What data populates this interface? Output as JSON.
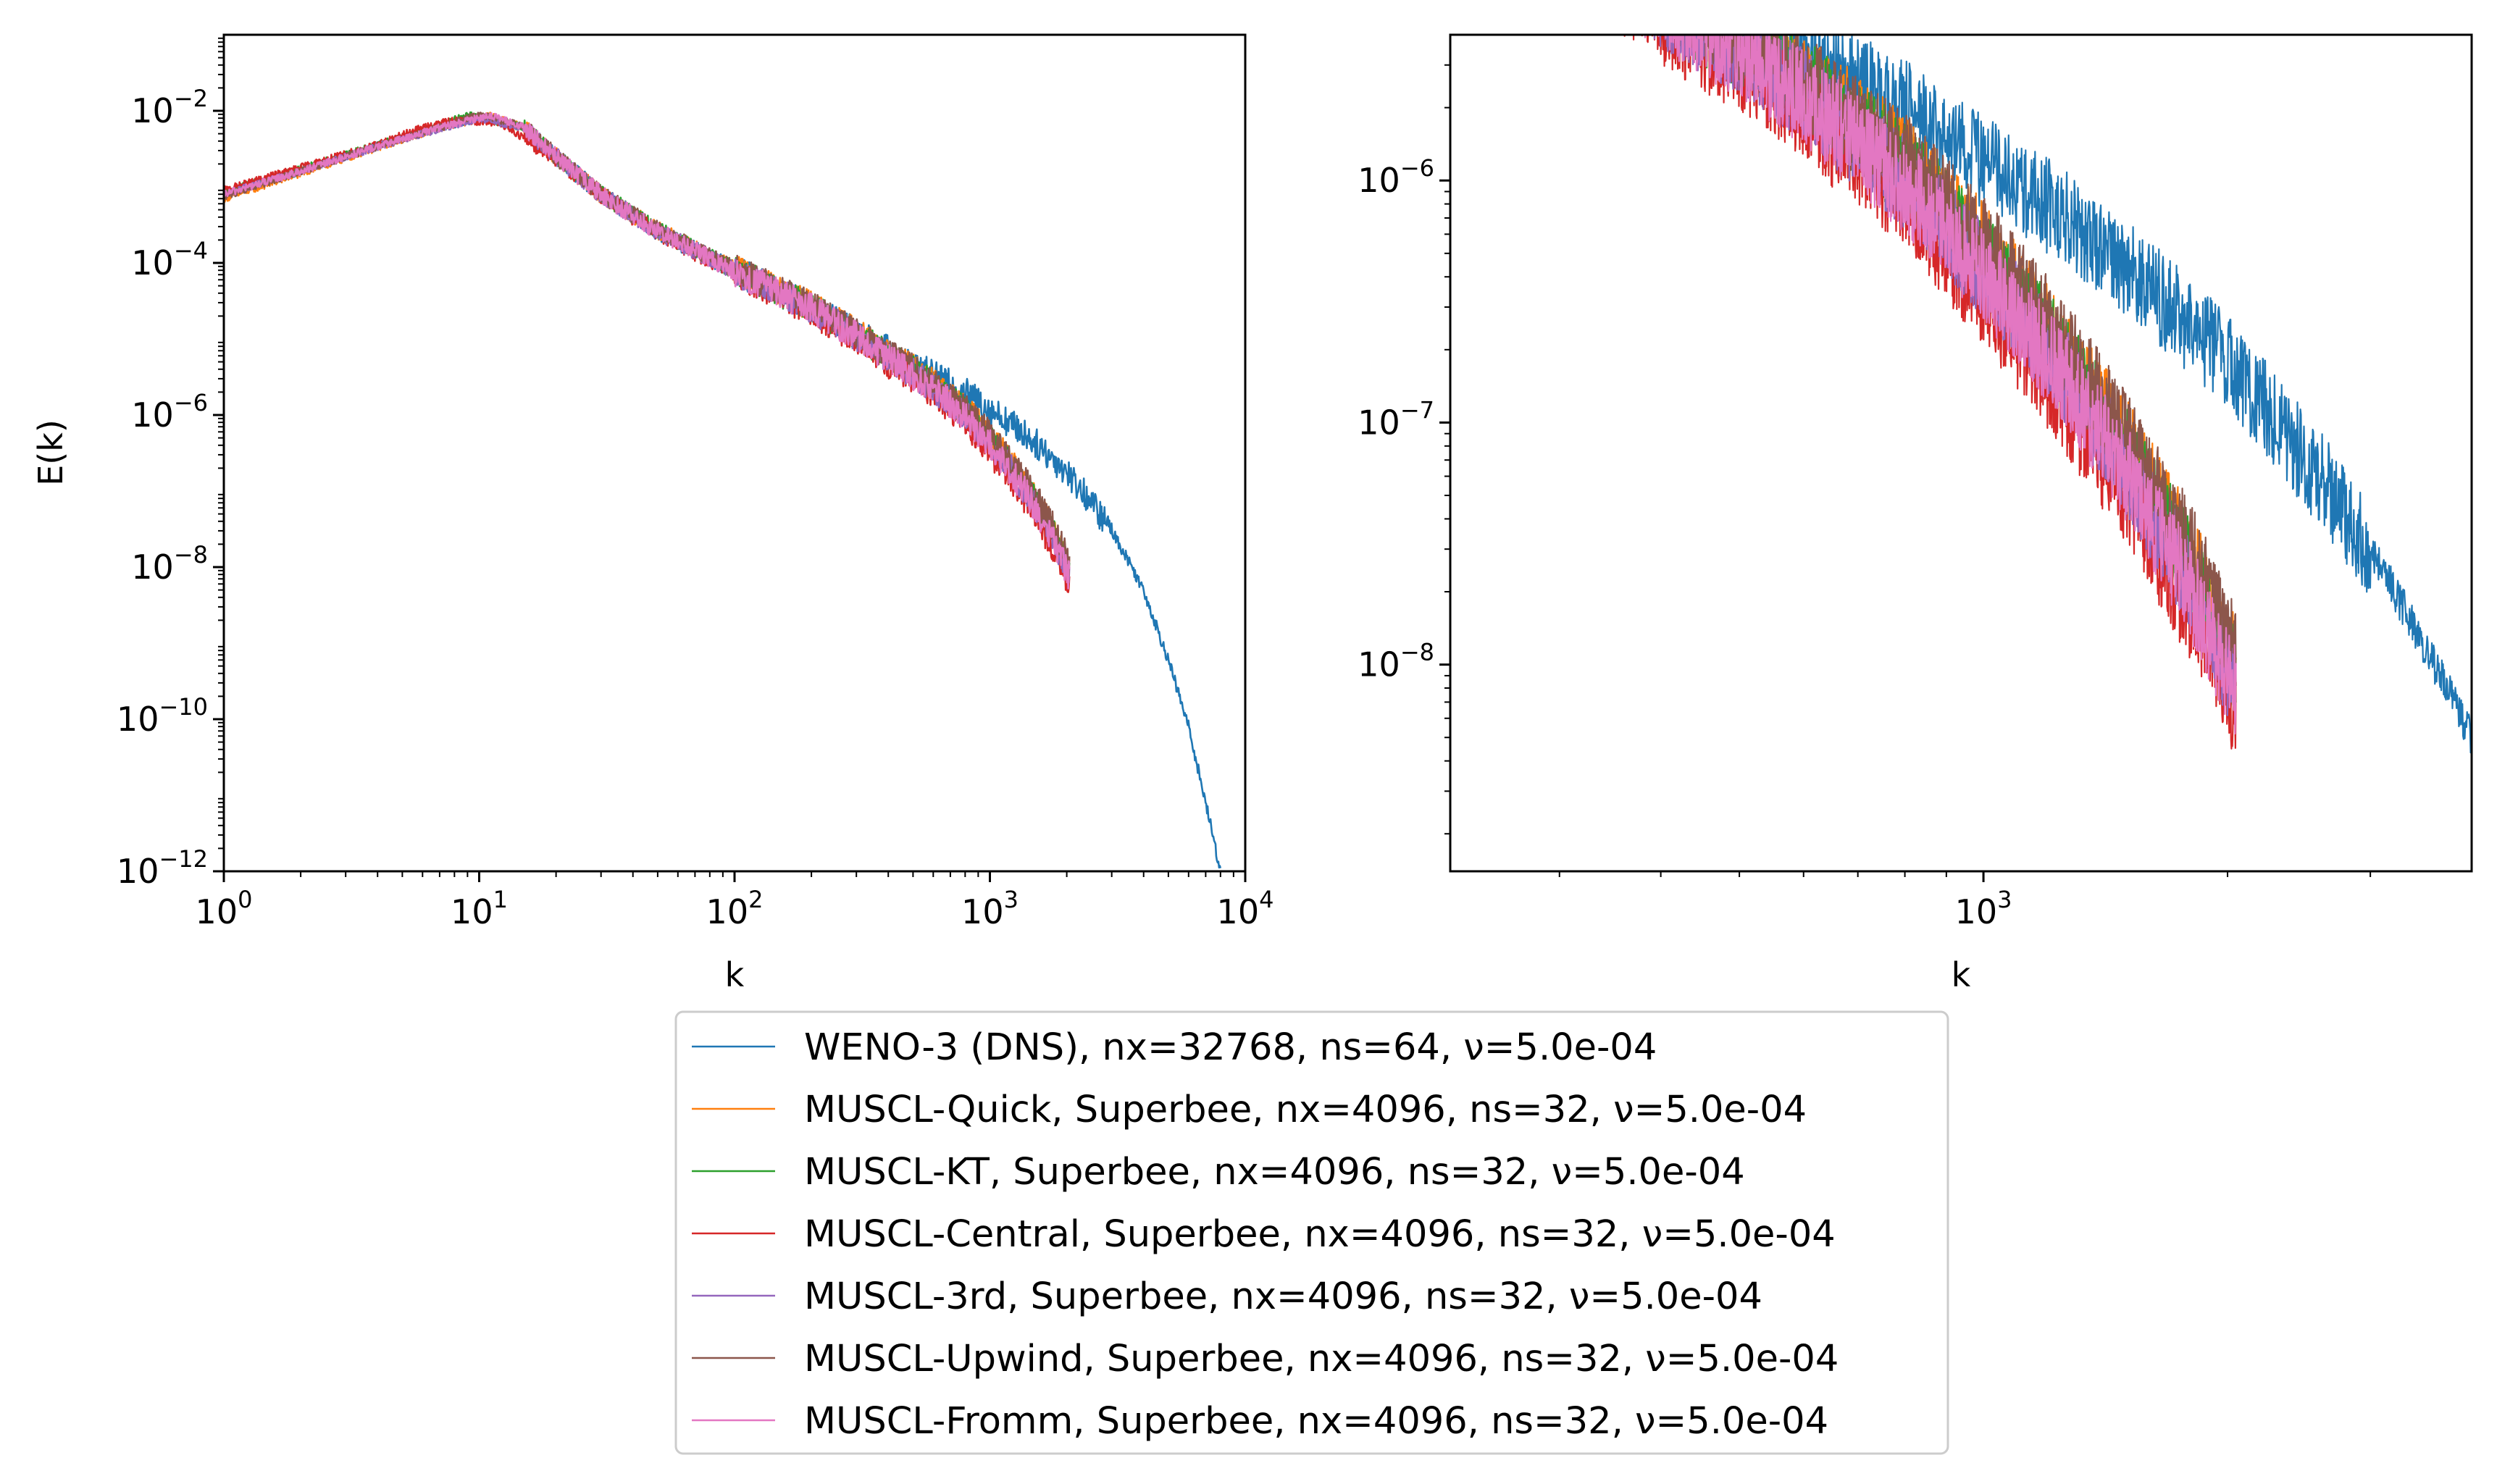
{
  "chart_data": [
    {
      "type": "line",
      "xscale": "log",
      "yscale": "log",
      "xlim": [
        1,
        10000
      ],
      "ylim": [
        1e-12,
        0.1
      ],
      "xlabel": "k",
      "ylabel": "E(k)",
      "xticks": [
        {
          "value": 1,
          "base": "10",
          "exp": "0"
        },
        {
          "value": 10,
          "base": "10",
          "exp": "1"
        },
        {
          "value": 100,
          "base": "10",
          "exp": "2"
        },
        {
          "value": 1000,
          "base": "10",
          "exp": "3"
        },
        {
          "value": 10000,
          "base": "10",
          "exp": "4"
        }
      ],
      "yticks": [
        {
          "value": 1e-12,
          "base": "10",
          "exp": "−12"
        },
        {
          "value": 1e-10,
          "base": "10",
          "exp": "−10"
        },
        {
          "value": 1e-08,
          "base": "10",
          "exp": "−8"
        },
        {
          "value": 1e-06,
          "base": "10",
          "exp": "−6"
        },
        {
          "value": 0.0001,
          "base": "10",
          "exp": "−4"
        },
        {
          "value": 0.01,
          "base": "10",
          "exp": "−2"
        }
      ],
      "grid": false
    },
    {
      "type": "line",
      "xscale": "log",
      "yscale": "log",
      "xlim": [
        220,
        4000
      ],
      "ylim": [
        1.4e-09,
        4e-06
      ],
      "xlabel": "k",
      "ylabel": "",
      "xticks": [
        {
          "value": 1000,
          "base": "10",
          "exp": "3"
        }
      ],
      "yticks": [
        {
          "value": 1e-08,
          "base": "10",
          "exp": "−8"
        },
        {
          "value": 1e-07,
          "base": "10",
          "exp": "−7"
        },
        {
          "value": 1e-06,
          "base": "10",
          "exp": "−6"
        }
      ],
      "grid": false
    }
  ],
  "series": [
    {
      "name": "WENO-3 (DNS), nx=32768, ns=64, ν=5.0e-04",
      "color": "#1f77b4",
      "points": [
        [
          1,
          0.0008
        ],
        [
          2,
          0.0016
        ],
        [
          4,
          0.0035
        ],
        [
          7,
          0.006
        ],
        [
          10,
          0.008
        ],
        [
          15,
          0.006
        ],
        [
          20,
          0.0025
        ],
        [
          30,
          0.0008
        ],
        [
          50,
          0.00026
        ],
        [
          100,
          8e-05
        ],
        [
          200,
          2.6e-05
        ],
        [
          400,
          7e-06
        ],
        [
          600,
          3.3e-06
        ],
        [
          800,
          2e-06
        ],
        [
          1000,
          1.2e-06
        ],
        [
          1300,
          6.5e-07
        ],
        [
          1600,
          3.6e-07
        ],
        [
          2000,
          1.8e-07
        ],
        [
          2500,
          7e-08
        ],
        [
          3000,
          3e-08
        ],
        [
          3500,
          1.2e-08
        ],
        [
          4000,
          5e-09
        ],
        [
          5000,
          6e-10
        ],
        [
          6000,
          8e-11
        ],
        [
          7000,
          8e-12
        ],
        [
          8000,
          1e-12
        ]
      ],
      "end": 8000
    },
    {
      "name": "MUSCL-Quick, Superbee, nx=4096, ns=32, ν=5.0e-04",
      "color": "#ff7f0e",
      "points": [
        [
          1,
          0.0007
        ],
        [
          2,
          0.0015
        ],
        [
          4,
          0.0033
        ],
        [
          7,
          0.006
        ],
        [
          11,
          0.0085
        ],
        [
          15,
          0.006
        ],
        [
          20,
          0.0025
        ],
        [
          30,
          0.0008
        ],
        [
          50,
          0.00027
        ],
        [
          100,
          8.2e-05
        ],
        [
          200,
          2.7e-05
        ],
        [
          300,
          1.2e-05
        ],
        [
          400,
          6.2e-06
        ],
        [
          500,
          4e-06
        ],
        [
          600,
          2.6e-06
        ],
        [
          800,
          1.2e-06
        ],
        [
          1000,
          5.2e-07
        ],
        [
          1200,
          2.4e-07
        ],
        [
          1500,
          8e-08
        ],
        [
          1800,
          2.8e-08
        ],
        [
          2048,
          1e-08
        ]
      ],
      "end": 2048
    },
    {
      "name": "MUSCL-KT, Superbee, nx=4096, ns=32, ν=5.0e-04",
      "color": "#2ca02c",
      "points": [
        [
          1,
          0.00085
        ],
        [
          2,
          0.0017
        ],
        [
          4,
          0.0036
        ],
        [
          7,
          0.0062
        ],
        [
          9,
          0.009
        ],
        [
          15,
          0.006
        ],
        [
          20,
          0.0025
        ],
        [
          30,
          0.0008
        ],
        [
          50,
          0.00027
        ],
        [
          100,
          8e-05
        ],
        [
          200,
          2.6e-05
        ],
        [
          300,
          1.15e-05
        ],
        [
          400,
          6e-06
        ],
        [
          500,
          3.8e-06
        ],
        [
          600,
          2.5e-06
        ],
        [
          800,
          1.1e-06
        ],
        [
          1000,
          4.8e-07
        ],
        [
          1200,
          2.2e-07
        ],
        [
          1500,
          7.5e-08
        ],
        [
          1800,
          2.5e-08
        ],
        [
          2048,
          9e-09
        ]
      ],
      "end": 2048
    },
    {
      "name": "MUSCL-Central, Superbee, nx=4096, ns=32, ν=5.0e-04",
      "color": "#d62728",
      "points": [
        [
          1,
          0.0009
        ],
        [
          2,
          0.0018
        ],
        [
          4,
          0.0036
        ],
        [
          6,
          0.006
        ],
        [
          8,
          0.0075
        ],
        [
          12,
          0.007
        ],
        [
          20,
          0.0024
        ],
        [
          30,
          0.00078
        ],
        [
          50,
          0.00025
        ],
        [
          100,
          7.5e-05
        ],
        [
          200,
          2.3e-05
        ],
        [
          300,
          9.5e-06
        ],
        [
          400,
          4.8e-06
        ],
        [
          500,
          2.9e-06
        ],
        [
          600,
          1.9e-06
        ],
        [
          800,
          8e-07
        ],
        [
          1000,
          3.3e-07
        ],
        [
          1200,
          1.5e-07
        ],
        [
          1500,
          5e-08
        ],
        [
          1800,
          1.6e-08
        ],
        [
          2048,
          6e-09
        ]
      ],
      "end": 2048
    },
    {
      "name": "MUSCL-3rd, Superbee, nx=4096, ns=32, ν=5.0e-04",
      "color": "#9467bd",
      "points": [
        [
          1,
          0.0008
        ],
        [
          2,
          0.0016
        ],
        [
          4,
          0.0034
        ],
        [
          7,
          0.0058
        ],
        [
          10,
          0.008
        ],
        [
          15,
          0.006
        ],
        [
          20,
          0.0025
        ],
        [
          30,
          0.00079
        ],
        [
          50,
          0.00026
        ],
        [
          100,
          7.8e-05
        ],
        [
          200,
          2.5e-05
        ],
        [
          300,
          1.1e-05
        ],
        [
          400,
          5.6e-06
        ],
        [
          500,
          3.5e-06
        ],
        [
          600,
          2.3e-06
        ],
        [
          800,
          1e-06
        ],
        [
          1000,
          4.3e-07
        ],
        [
          1200,
          2e-07
        ],
        [
          1500,
          6.6e-08
        ],
        [
          1800,
          2.2e-08
        ],
        [
          2048,
          8e-09
        ]
      ],
      "end": 2048
    },
    {
      "name": "MUSCL-Upwind, Superbee, nx=4096, ns=32, ν=5.0e-04",
      "color": "#8c564b",
      "points": [
        [
          1,
          0.00075
        ],
        [
          2,
          0.0016
        ],
        [
          4,
          0.0034
        ],
        [
          7,
          0.006
        ],
        [
          10,
          0.009
        ],
        [
          15,
          0.0062
        ],
        [
          20,
          0.0025
        ],
        [
          30,
          0.0008
        ],
        [
          50,
          0.00027
        ],
        [
          100,
          8.3e-05
        ],
        [
          200,
          2.7e-05
        ],
        [
          300,
          1.2e-05
        ],
        [
          400,
          6.3e-06
        ],
        [
          500,
          4e-06
        ],
        [
          600,
          2.6e-06
        ],
        [
          800,
          1.2e-06
        ],
        [
          1000,
          5.4e-07
        ],
        [
          1200,
          2.6e-07
        ],
        [
          1500,
          8.6e-08
        ],
        [
          1800,
          3e-08
        ],
        [
          2048,
          1.1e-08
        ]
      ],
      "end": 2048
    },
    {
      "name": "MUSCL-Fromm, Superbee, nx=4096, ns=32, ν=5.0e-04",
      "color": "#e377c2",
      "points": [
        [
          1,
          0.0008
        ],
        [
          2,
          0.0016
        ],
        [
          4,
          0.0034
        ],
        [
          7,
          0.006
        ],
        [
          11,
          0.0088
        ],
        [
          15,
          0.006
        ],
        [
          20,
          0.0025
        ],
        [
          30,
          0.00079
        ],
        [
          50,
          0.00026
        ],
        [
          100,
          7.8e-05
        ],
        [
          200,
          2.5e-05
        ],
        [
          300,
          1.1e-05
        ],
        [
          400,
          5.5e-06
        ],
        [
          500,
          3.4e-06
        ],
        [
          600,
          2.2e-06
        ],
        [
          800,
          9.5e-07
        ],
        [
          1000,
          4.1e-07
        ],
        [
          1200,
          1.9e-07
        ],
        [
          1500,
          6.2e-08
        ],
        [
          1800,
          2e-08
        ],
        [
          2048,
          7.5e-09
        ]
      ],
      "end": 2048
    }
  ],
  "legend": {
    "placement": "lower-center"
  }
}
